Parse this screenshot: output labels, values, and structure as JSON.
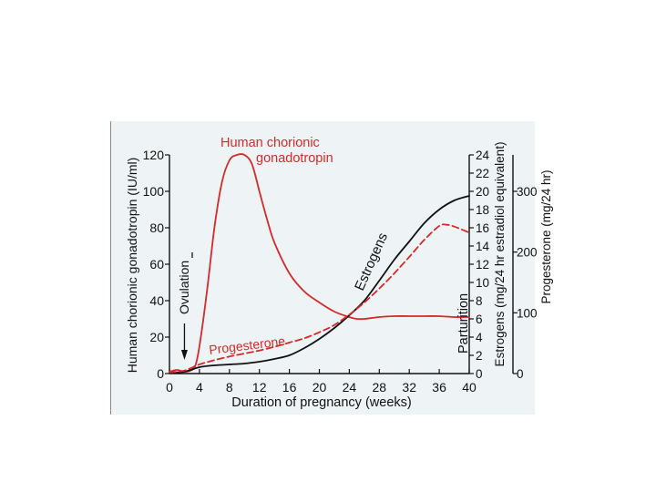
{
  "chart_data": {
    "type": "line",
    "title": "",
    "xlabel": "Duration of pregnancy (weeks)",
    "xlim": [
      0,
      40
    ],
    "x_ticks": [
      "0",
      "4",
      "8",
      "12",
      "16",
      "20",
      "24",
      "28",
      "32",
      "36",
      "40"
    ],
    "y_axes": {
      "left": {
        "label": "Human chorionic gonadotropin (IU/ml)",
        "lim": [
          0,
          120
        ],
        "ticks": [
          "0",
          "20",
          "40",
          "60",
          "80",
          "100",
          "120"
        ]
      },
      "estrogens": {
        "label": "Estrogens (mg/24 hr estradiol equivalent)",
        "lim": [
          0,
          24
        ],
        "ticks": [
          "0",
          "2",
          "4",
          "6",
          "8",
          "10",
          "12",
          "14",
          "16",
          "18",
          "20",
          "22",
          "24"
        ]
      },
      "progesterone": {
        "label": "Progesterone (mg/24 hr)",
        "lim": [
          0,
          360
        ],
        "ticks": [
          "0",
          "100",
          "200",
          "300"
        ]
      }
    },
    "grid": false,
    "series": [
      {
        "name": "Human chorionic gonadotropin",
        "axis": "left",
        "color": "#d42a2a",
        "style": "solid",
        "x": [
          0,
          1,
          2,
          3,
          3.5,
          4,
          5,
          6,
          7,
          8,
          9,
          10,
          11,
          12,
          13,
          14,
          16,
          18,
          20,
          22,
          24,
          25,
          26,
          28,
          30,
          32,
          34,
          36,
          38,
          40
        ],
        "values": [
          1,
          2,
          1,
          2,
          5,
          15,
          45,
          80,
          105,
          117,
          120,
          120,
          115,
          100,
          85,
          72,
          55,
          45,
          39,
          34,
          31,
          30,
          30,
          31,
          31.5,
          31.5,
          31.5,
          31.5,
          31,
          31
        ]
      },
      {
        "name": "Estrogens",
        "axis": "estrogens",
        "color": "#111111",
        "style": "solid",
        "x": [
          0,
          2,
          4,
          6,
          8,
          10,
          12,
          14,
          16,
          18,
          20,
          22,
          24,
          26,
          28,
          30,
          32,
          34,
          36,
          38,
          40
        ],
        "values": [
          0.1,
          0.2,
          0.7,
          0.9,
          1.0,
          1.1,
          1.3,
          1.6,
          2.0,
          2.8,
          3.8,
          5.0,
          6.4,
          8.0,
          10.2,
          12.5,
          14.5,
          16.5,
          18.0,
          19.0,
          19.5
        ]
      },
      {
        "name": "Progesterone",
        "axis": "progesterone",
        "color": "#d42a2a",
        "style": "dashed",
        "x": [
          0,
          2,
          4,
          6,
          8,
          10,
          12,
          14,
          16,
          18,
          20,
          22,
          24,
          26,
          28,
          30,
          32,
          34,
          36,
          37,
          38,
          40
        ],
        "values": [
          2,
          5,
          15,
          22,
          28,
          33,
          38,
          44,
          51,
          58,
          68,
          80,
          97,
          117,
          140,
          165,
          192,
          220,
          243,
          245,
          242,
          232
        ]
      }
    ],
    "annotations": [
      {
        "text": "Human chorionic",
        "color": "#d42a2a"
      },
      {
        "text": "gonadotropin",
        "color": "#d42a2a"
      },
      {
        "text": "Estrogens",
        "color": "#111111"
      },
      {
        "text": "Progesterone",
        "color": "#d42a2a"
      },
      {
        "text": "Ovulation",
        "color": "#111111",
        "x": 2
      },
      {
        "text": "Parturition",
        "color": "#111111"
      }
    ]
  }
}
